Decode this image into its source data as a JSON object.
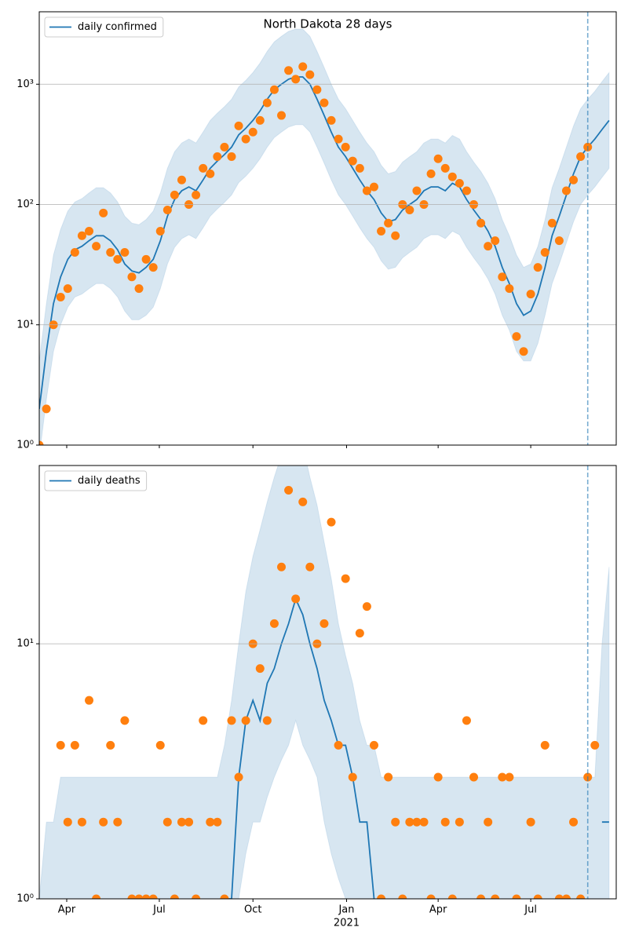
{
  "chart_data": [
    {
      "type": "line",
      "title": "North Dakota 28 days",
      "log": true,
      "grid": true,
      "legend": "upper left",
      "ylim": [
        1,
        4000
      ],
      "yticks": [
        {
          "value": 1,
          "label": "10⁰"
        },
        {
          "value": 10,
          "label": "10¹"
        },
        {
          "value": 100,
          "label": "10²"
        },
        {
          "value": 1000,
          "label": "10³"
        }
      ],
      "xlim": [
        0,
        567
      ],
      "vline": 539,
      "x": [
        0,
        7,
        14,
        21,
        28,
        35,
        42,
        49,
        56,
        63,
        70,
        77,
        84,
        91,
        98,
        105,
        112,
        119,
        126,
        133,
        140,
        147,
        154,
        161,
        168,
        175,
        182,
        189,
        196,
        203,
        210,
        217,
        224,
        231,
        238,
        245,
        252,
        259,
        266,
        273,
        280,
        287,
        294,
        301,
        308,
        315,
        322,
        329,
        336,
        343,
        350,
        357,
        364,
        371,
        378,
        385,
        392,
        399,
        406,
        413,
        420,
        427,
        434,
        441,
        448,
        455,
        462,
        469,
        476,
        483,
        490,
        497,
        504,
        511,
        518,
        525,
        532,
        539,
        546,
        553,
        560
      ],
      "band": {
        "color": "#1f77b4",
        "upper": [
          5,
          15,
          38,
          62,
          88,
          105,
          112,
          125,
          138,
          138,
          125,
          105,
          80,
          70,
          68,
          75,
          88,
          125,
          200,
          275,
          325,
          350,
          325,
          400,
          500,
          575,
          650,
          750,
          950,
          1075,
          1250,
          1500,
          1875,
          2250,
          2500,
          2750,
          2875,
          2875,
          2500,
          1875,
          1375,
          1000,
          750,
          625,
          500,
          400,
          325,
          275,
          212,
          180,
          188,
          225,
          250,
          275,
          325,
          350,
          350,
          325,
          375,
          350,
          275,
          225,
          188,
          150,
          112,
          75,
          55,
          38,
          30,
          32,
          45,
          75,
          138,
          200,
          300,
          450,
          625,
          750,
          875,
          1050,
          1250
        ],
        "lower": [
          0.8,
          2.4,
          6,
          10,
          14,
          17,
          18,
          20,
          22,
          22,
          20,
          17,
          13,
          11,
          11,
          12,
          14,
          20,
          32,
          44,
          52,
          56,
          52,
          64,
          80,
          92,
          104,
          120,
          152,
          172,
          200,
          240,
          300,
          360,
          400,
          440,
          460,
          460,
          400,
          300,
          220,
          160,
          120,
          100,
          80,
          64,
          52,
          44,
          34,
          29,
          30,
          36,
          40,
          44,
          52,
          56,
          56,
          52,
          60,
          56,
          44,
          36,
          30,
          24,
          18,
          12,
          9,
          6,
          5,
          5,
          7,
          12,
          22,
          32,
          48,
          72,
          100,
          120,
          140,
          168,
          200
        ]
      },
      "series": [
        {
          "name": "daily confirmed",
          "color": "#1f77b4",
          "values": [
            2,
            6,
            15,
            25,
            35,
            42,
            45,
            50,
            55,
            55,
            50,
            42,
            32,
            28,
            27,
            30,
            35,
            50,
            80,
            110,
            130,
            140,
            130,
            160,
            200,
            230,
            260,
            300,
            380,
            430,
            500,
            600,
            750,
            900,
            1000,
            1100,
            1150,
            1150,
            1000,
            750,
            550,
            400,
            300,
            250,
            200,
            160,
            130,
            110,
            85,
            72,
            75,
            90,
            100,
            110,
            130,
            140,
            140,
            130,
            150,
            140,
            110,
            90,
            75,
            60,
            45,
            30,
            22,
            15,
            12,
            13,
            18,
            30,
            55,
            80,
            120,
            180,
            250,
            300,
            350,
            420,
            500
          ]
        },
        {
          "type": "scatter",
          "color": "#ff7f0e",
          "values": [
            1,
            2,
            10,
            17,
            20,
            40,
            55,
            60,
            45,
            85,
            40,
            35,
            40,
            25,
            20,
            35,
            30,
            60,
            90,
            120,
            160,
            100,
            120,
            200,
            180,
            250,
            300,
            250,
            450,
            350,
            400,
            500,
            700,
            900,
            550,
            1300,
            1100,
            1400,
            1200,
            900,
            700,
            500,
            350,
            300,
            230,
            200,
            130,
            140,
            60,
            70,
            55,
            100,
            90,
            130,
            100,
            180,
            240,
            200,
            170,
            150,
            130,
            100,
            70,
            45,
            50,
            25,
            20,
            8,
            6,
            18,
            30,
            40,
            70,
            50,
            130,
            160,
            250,
            300,
            null,
            null,
            null
          ]
        }
      ]
    },
    {
      "type": "line",
      "log": true,
      "grid": true,
      "legend": "upper left",
      "ylim": [
        1,
        50
      ],
      "yticks": [
        {
          "value": 1,
          "label": "10⁰"
        },
        {
          "value": 10,
          "label": "10¹"
        }
      ],
      "xlim": [
        0,
        567
      ],
      "vline": 539,
      "xticks": [
        {
          "value": 27,
          "label": "Apr"
        },
        {
          "value": 118,
          "label": "Jul"
        },
        {
          "value": 210,
          "label": "Oct"
        },
        {
          "value": 302,
          "label": "Jan"
        },
        {
          "value": 392,
          "label": "Apr"
        },
        {
          "value": 483,
          "label": "Jul"
        }
      ],
      "x_year_label": "2021",
      "x": [
        0,
        7,
        14,
        21,
        28,
        35,
        42,
        49,
        56,
        63,
        70,
        77,
        84,
        91,
        98,
        105,
        112,
        119,
        126,
        133,
        140,
        147,
        154,
        161,
        168,
        175,
        182,
        189,
        196,
        203,
        210,
        217,
        224,
        231,
        238,
        245,
        252,
        259,
        266,
        273,
        280,
        287,
        294,
        301,
        308,
        315,
        322,
        329,
        336,
        343,
        350,
        357,
        364,
        371,
        378,
        385,
        392,
        399,
        406,
        413,
        420,
        427,
        434,
        441,
        448,
        455,
        462,
        469,
        476,
        483,
        490,
        497,
        504,
        511,
        518,
        525,
        532,
        539,
        546,
        553,
        560
      ],
      "band": {
        "color": "#1f77b4",
        "upper": [
          1,
          2,
          2,
          3,
          3,
          3,
          3,
          3,
          3,
          3,
          3,
          3,
          3,
          3,
          3,
          3,
          3,
          3,
          3,
          3,
          3,
          3,
          3,
          3,
          3,
          3,
          4,
          6,
          10,
          16,
          22,
          28,
          36,
          45,
          55,
          65,
          70,
          60,
          45,
          35,
          25,
          18,
          12,
          9,
          7,
          5,
          4,
          4,
          3,
          3,
          3,
          3,
          3,
          3,
          3,
          3,
          3,
          3,
          3,
          3,
          3,
          3,
          3,
          3,
          3,
          3,
          3,
          3,
          3,
          3,
          3,
          3,
          3,
          3,
          3,
          3,
          3,
          3,
          3,
          10,
          20
        ],
        "lower": [
          0,
          0,
          0,
          0,
          0,
          0,
          0,
          0,
          0,
          0,
          0,
          0,
          0,
          0,
          0,
          0,
          0,
          0,
          0,
          0,
          0,
          0,
          0,
          0,
          0,
          0,
          0,
          0,
          1,
          1.5,
          2,
          2,
          2.5,
          3,
          3.5,
          4,
          5,
          4,
          3.5,
          3,
          2,
          1.5,
          1.2,
          1,
          0,
          0,
          0,
          0,
          0,
          0,
          0,
          0,
          0,
          0,
          0,
          0,
          0,
          0,
          0,
          0,
          0,
          0,
          0,
          0,
          0,
          0,
          0,
          0,
          0,
          0,
          0,
          0,
          0,
          0,
          0,
          0,
          0,
          0,
          0,
          0,
          0
        ]
      },
      "series": [
        {
          "name": "daily deaths",
          "color": "#1f77b4",
          "values": [
            0,
            0,
            0,
            0,
            0,
            0,
            0,
            0,
            0,
            0,
            0,
            0,
            0,
            0,
            0,
            0,
            0,
            0,
            0,
            0,
            0,
            0,
            0,
            0,
            0,
            0,
            1,
            1,
            3,
            5,
            6,
            5,
            7,
            8,
            10,
            12,
            15,
            13,
            10,
            8,
            6,
            5,
            4,
            4,
            3,
            2,
            2,
            1,
            0,
            0,
            0,
            0,
            0,
            0,
            0,
            0,
            0,
            0,
            0,
            0,
            0,
            0,
            0,
            0,
            0,
            0,
            0,
            0,
            0,
            0,
            0,
            0,
            0,
            0,
            0,
            0,
            0,
            0,
            0,
            2,
            2
          ]
        },
        {
          "type": "scatter",
          "color": "#ff7f0e",
          "values": [
            0,
            0,
            0,
            4,
            2,
            4,
            2,
            6,
            1,
            2,
            4,
            2,
            5,
            1,
            1,
            1,
            1,
            4,
            2,
            1,
            2,
            2,
            1,
            5,
            2,
            2,
            1,
            5,
            3,
            5,
            10,
            8,
            5,
            12,
            20,
            40,
            15,
            36,
            20,
            10,
            12,
            30,
            4,
            18,
            3,
            11,
            14,
            4,
            1,
            3,
            2,
            1,
            2,
            2,
            2,
            1,
            3,
            2,
            1,
            2,
            5,
            3,
            1,
            2,
            1,
            3,
            3,
            1,
            0,
            2,
            1,
            4,
            0,
            1,
            1,
            2,
            1,
            3,
            4,
            null,
            null
          ]
        }
      ]
    }
  ]
}
